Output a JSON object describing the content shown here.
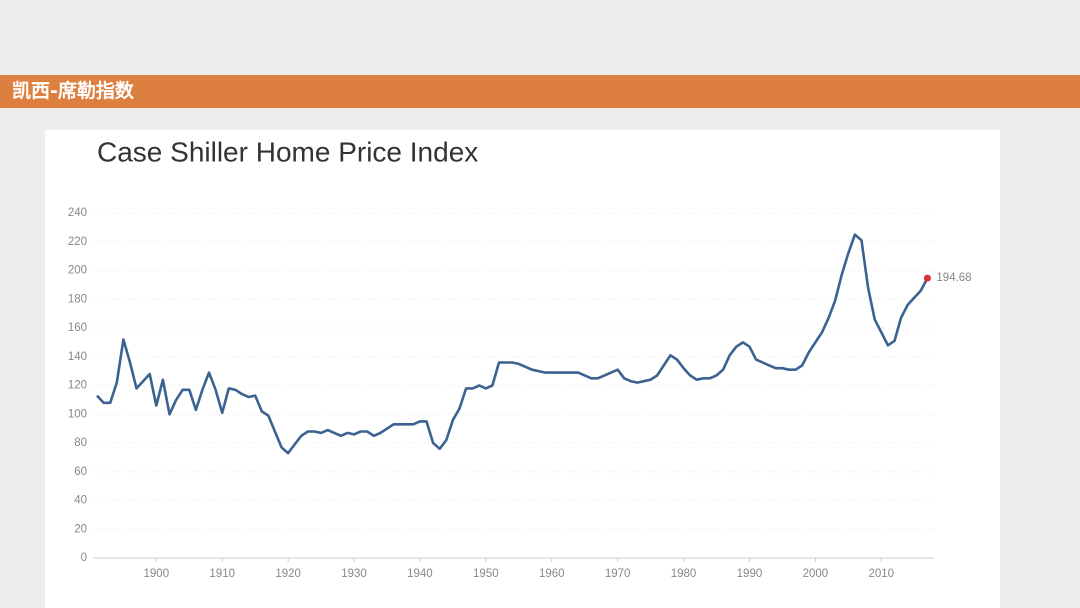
{
  "header": {
    "title": "凯西-席勒指数"
  },
  "chart_data": {
    "type": "line",
    "title": "Case Shiller Home Price Index",
    "x": [
      1891,
      1892,
      1893,
      1894,
      1895,
      1896,
      1897,
      1898,
      1899,
      1900,
      1901,
      1902,
      1903,
      1904,
      1905,
      1906,
      1907,
      1908,
      1909,
      1910,
      1911,
      1912,
      1913,
      1914,
      1915,
      1916,
      1917,
      1918,
      1919,
      1920,
      1921,
      1922,
      1923,
      1924,
      1925,
      1926,
      1927,
      1928,
      1929,
      1930,
      1931,
      1932,
      1933,
      1934,
      1935,
      1936,
      1937,
      1938,
      1939,
      1940,
      1941,
      1942,
      1943,
      1944,
      1945,
      1946,
      1947,
      1948,
      1949,
      1950,
      1951,
      1952,
      1953,
      1954,
      1955,
      1956,
      1957,
      1958,
      1959,
      1960,
      1961,
      1962,
      1963,
      1964,
      1965,
      1966,
      1967,
      1968,
      1969,
      1970,
      1971,
      1972,
      1973,
      1974,
      1975,
      1976,
      1977,
      1978,
      1979,
      1980,
      1981,
      1982,
      1983,
      1984,
      1985,
      1986,
      1987,
      1988,
      1989,
      1990,
      1991,
      1992,
      1993,
      1994,
      1995,
      1996,
      1997,
      1998,
      1999,
      2000,
      2001,
      2002,
      2003,
      2004,
      2005,
      2006,
      2007,
      2008,
      2009,
      2010,
      2011,
      2012,
      2013,
      2014,
      2015,
      2016,
      2017
    ],
    "values": [
      113,
      108,
      108,
      122,
      152,
      136,
      118,
      123,
      128,
      106,
      124,
      100,
      110,
      117,
      117,
      103,
      117,
      129,
      117,
      101,
      118,
      117,
      114,
      112,
      113,
      102,
      99,
      88,
      77,
      73,
      79,
      85,
      88,
      88,
      87,
      89,
      87,
      85,
      87,
      86,
      88,
      88,
      85,
      87,
      90,
      93,
      93,
      93,
      93,
      95,
      95,
      80,
      76,
      82,
      96,
      104,
      118,
      118,
      120,
      118,
      120,
      136,
      136,
      136,
      135,
      133,
      131,
      130,
      129,
      129,
      129,
      129,
      129,
      129,
      127,
      125,
      125,
      127,
      129,
      131,
      125,
      123,
      122,
      123,
      124,
      127,
      134,
      141,
      138,
      132,
      127,
      124,
      125,
      125,
      127,
      131,
      141,
      147,
      150,
      147,
      138,
      136,
      134,
      132,
      132,
      131,
      131,
      134,
      143,
      150,
      157,
      167,
      179,
      197,
      212,
      225,
      221,
      188,
      166,
      157,
      148,
      151,
      167,
      176,
      181,
      186,
      194.68
    ],
    "color": "#3b6290",
    "end_marker_color": "#e0303a",
    "xlim": [
      1891,
      2018
    ],
    "xticks": [
      1900,
      1910,
      1920,
      1930,
      1940,
      1950,
      1960,
      1970,
      1980,
      1990,
      2000,
      2010
    ],
    "ylim": [
      0,
      240
    ],
    "yticks": [
      0,
      20,
      40,
      60,
      80,
      100,
      120,
      140,
      160,
      180,
      200,
      220,
      240
    ],
    "grid": true
  }
}
